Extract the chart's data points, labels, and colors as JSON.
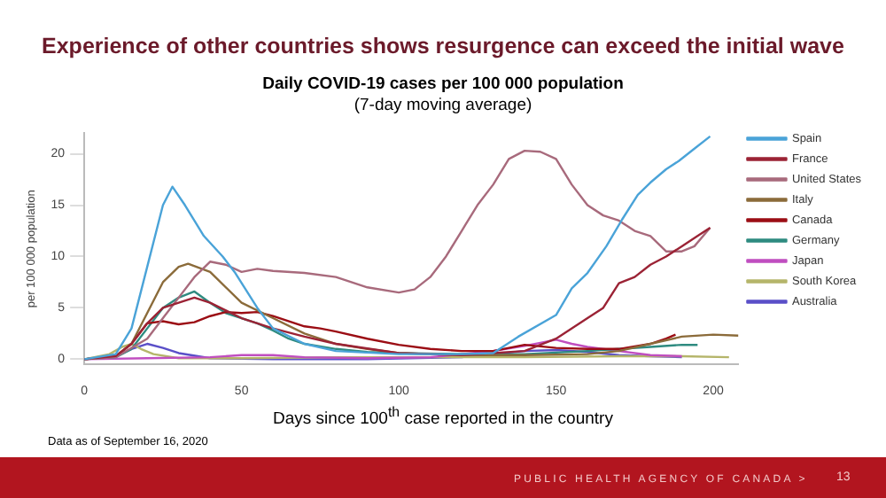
{
  "chart_data": {
    "type": "line",
    "title": "Experience of other countries shows resurgence can exceed the initial wave",
    "subtitle": "Daily COVID-19 cases per 100 000 population\n(7-day moving average)",
    "xlabel": "Days since 100$^{th}$ case reported in the country",
    "ylabel": "per 100 000 population",
    "xlim": [
      0,
      208
    ],
    "xticks": [
      0,
      50,
      100,
      150,
      200
    ],
    "ylim": [
      -0.5,
      22
    ],
    "yticks": [
      0,
      5,
      10,
      15,
      20
    ],
    "grid": false,
    "legend": "right",
    "marker": "none",
    "line_style": "solid",
    "annotations": [
      "Data as of September 16, 2020",
      "PUBLIC HEALTH AGENCY OF CANADA >",
      "13"
    ],
    "series": [
      {
        "name": "Spain",
        "color": "#4aa3d8",
        "x": [
          0,
          10,
          15,
          20,
          25,
          28,
          32,
          38,
          44,
          48,
          55,
          60,
          70,
          80,
          100,
          120,
          130,
          138,
          150,
          155,
          160,
          166,
          171,
          176,
          180,
          185,
          189,
          194,
          199
        ],
        "values": [
          0,
          0.5,
          3,
          9,
          15,
          16.8,
          15,
          12,
          10,
          8.4,
          5,
          3,
          1.5,
          0.8,
          0.5,
          0.5,
          0.6,
          2.2,
          4.3,
          6.9,
          8.4,
          11,
          13.6,
          16,
          17.2,
          18.5,
          19.3,
          20.5,
          21.7
        ]
      },
      {
        "name": "France",
        "color": "#9b2335",
        "x": [
          0,
          10,
          15,
          20,
          25,
          30,
          35,
          40,
          50,
          60,
          70,
          80,
          100,
          120,
          140,
          150,
          160,
          165,
          170,
          175,
          180,
          185,
          190,
          195,
          199
        ],
        "values": [
          0,
          0.3,
          1.5,
          3.5,
          5,
          5.5,
          6,
          5.5,
          4,
          3,
          2.2,
          1.5,
          0.6,
          0.4,
          0.8,
          2,
          4,
          5,
          7.4,
          8,
          9.2,
          10,
          11,
          12,
          12.8
        ]
      },
      {
        "name": "United States",
        "color": "#a86a7c",
        "x": [
          0,
          10,
          20,
          25,
          30,
          35,
          40,
          45,
          50,
          55,
          60,
          70,
          80,
          90,
          100,
          105,
          110,
          115,
          120,
          125,
          130,
          135,
          140,
          145,
          150,
          155,
          160,
          165,
          170,
          175,
          180,
          185,
          190,
          194,
          199
        ],
        "values": [
          0,
          0.2,
          2,
          4,
          6,
          8,
          9.5,
          9.2,
          8.5,
          8.8,
          8.6,
          8.4,
          8,
          7,
          6.5,
          6.8,
          8,
          10,
          12.5,
          15,
          17,
          19.5,
          20.3,
          20.2,
          19.5,
          17,
          15,
          14,
          13.5,
          12.5,
          12,
          10.5,
          10.5,
          11,
          12.8
        ]
      },
      {
        "name": "Italy",
        "color": "#8b6b3a",
        "x": [
          0,
          10,
          15,
          20,
          25,
          30,
          33,
          40,
          50,
          60,
          70,
          80,
          90,
          100,
          120,
          140,
          160,
          170,
          180,
          190,
          200,
          208
        ],
        "values": [
          0,
          0.3,
          1.5,
          4.5,
          7.5,
          9,
          9.3,
          8.5,
          5.5,
          4,
          2.5,
          1.5,
          1,
          0.6,
          0.4,
          0.4,
          0.5,
          0.8,
          1.5,
          2.2,
          2.4,
          2.3
        ]
      },
      {
        "name": "Canada",
        "color": "#9b0d14",
        "x": [
          0,
          10,
          15,
          20,
          25,
          30,
          35,
          40,
          45,
          50,
          55,
          60,
          70,
          75,
          80,
          90,
          100,
          110,
          120,
          130,
          140,
          150,
          160,
          170,
          180,
          185,
          188
        ],
        "values": [
          0,
          0.3,
          1.5,
          3.5,
          3.7,
          3.4,
          3.6,
          4.2,
          4.6,
          4.5,
          4.6,
          4.2,
          3.2,
          3,
          2.7,
          2,
          1.4,
          1,
          0.8,
          0.8,
          1.4,
          1.1,
          1,
          1,
          1.5,
          2,
          2.4
        ]
      },
      {
        "name": "Germany",
        "color": "#2e8b80",
        "x": [
          0,
          10,
          15,
          20,
          25,
          30,
          35,
          40,
          45,
          50,
          55,
          60,
          65,
          70,
          80,
          90,
          100,
          120,
          140,
          160,
          170,
          180,
          190,
          195
        ],
        "values": [
          0,
          0.2,
          1,
          3,
          5,
          6,
          6.6,
          5.5,
          4.5,
          4,
          3.5,
          2.8,
          2,
          1.5,
          1,
          0.7,
          0.6,
          0.5,
          0.5,
          0.8,
          1,
          1.2,
          1.4,
          1.4
        ]
      },
      {
        "name": "Japan",
        "color": "#c04ec0",
        "x": [
          0,
          20,
          40,
          50,
          60,
          70,
          90,
          110,
          130,
          140,
          150,
          155,
          160,
          170,
          180,
          190
        ],
        "values": [
          0,
          0.1,
          0.2,
          0.4,
          0.4,
          0.2,
          0.1,
          0.2,
          0.8,
          1.3,
          1.9,
          1.5,
          1.2,
          0.8,
          0.4,
          0.3
        ]
      },
      {
        "name": "South Korea",
        "color": "#b5b56a",
        "x": [
          0,
          8,
          12,
          15,
          18,
          22,
          30,
          50,
          80,
          110,
          140,
          170,
          190,
          205
        ],
        "values": [
          0,
          0.5,
          1.2,
          1.5,
          1,
          0.5,
          0.1,
          0.1,
          0.2,
          0.2,
          0.2,
          0.3,
          0.3,
          0.2
        ]
      },
      {
        "name": "Australia",
        "color": "#5a4fc8",
        "x": [
          0,
          10,
          15,
          20,
          25,
          30,
          40,
          60,
          90,
          120,
          130,
          140,
          150,
          160,
          170,
          180,
          190
        ],
        "values": [
          0,
          0.3,
          1,
          1.5,
          1.1,
          0.6,
          0.1,
          0,
          0,
          0.2,
          0.5,
          0.8,
          0.9,
          0.7,
          0.4,
          0.3,
          0.2
        ]
      }
    ]
  }
}
